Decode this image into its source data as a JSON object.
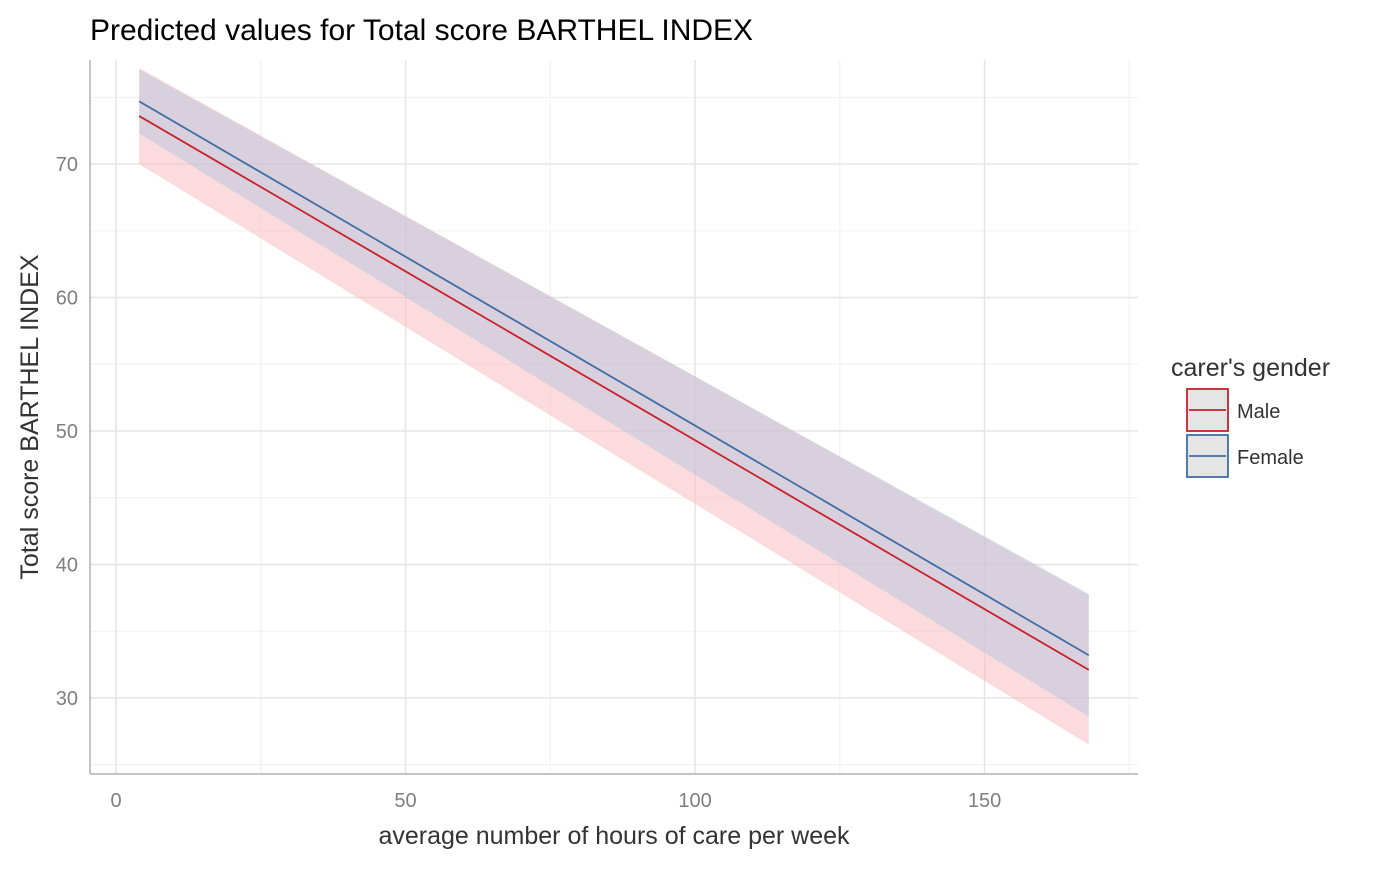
{
  "chart_data": {
    "type": "line",
    "title": "Predicted values for Total score BARTHEL INDEX",
    "xlabel": "average number of hours of care per week",
    "ylabel": "Total score BARTHEL INDEX",
    "xlim": [
      -4.5,
      176.5
    ],
    "ylim": [
      24.3,
      77.8
    ],
    "x_ticks": [
      0,
      50,
      100,
      150
    ],
    "y_ticks": [
      30,
      40,
      50,
      60,
      70
    ],
    "grid": true,
    "legend": {
      "title": "carer's gender",
      "position": "right"
    },
    "series": [
      {
        "name": "Male",
        "color": "#c9202c",
        "fill_color": "#f8b7bb",
        "x": [
          4,
          168
        ],
        "y": [
          73.6,
          32.1
        ],
        "lower": [
          70.0,
          26.5
        ],
        "upper": [
          77.2,
          37.7
        ]
      },
      {
        "name": "Female",
        "color": "#3f6ea6",
        "fill_color": "#b7c5dd",
        "x": [
          4,
          168
        ],
        "y": [
          74.7,
          33.2
        ],
        "lower": [
          72.3,
          28.6
        ],
        "upper": [
          77.1,
          37.8
        ]
      }
    ]
  }
}
